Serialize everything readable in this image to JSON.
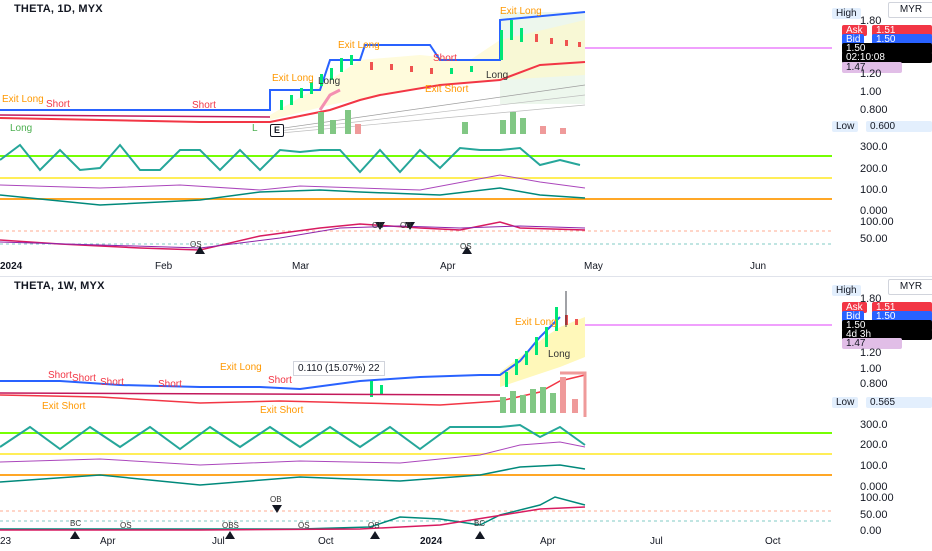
{
  "panels": [
    {
      "id": "panel-1d",
      "title": "THETA, 1D, MYX",
      "currency": "MYR",
      "price_ticks": [
        "1.80",
        "1.20",
        "1.00",
        "0.800"
      ],
      "labels": {
        "high_label": "High",
        "high_value": "1.80",
        "ask_label": "Ask",
        "ask_value": "1.51",
        "bid_label": "Bid",
        "bid_value": "1.50",
        "last_price": "1.50",
        "countdown": "02:10:08",
        "pink_value": "1.47",
        "low_label": "Low",
        "low_value": "0.600"
      },
      "osc1_ticks": [
        "300.0",
        "200.0",
        "100.0",
        "0.000"
      ],
      "osc2_ticks": [
        "100.00",
        "50.00"
      ],
      "time_labels": [
        "2024",
        "Feb",
        "Mar",
        "Apr",
        "May",
        "Jun"
      ],
      "annotations": [
        "Exit Long",
        "Short",
        "Short",
        "Long",
        "Exit Long",
        "Exit Long",
        "Short",
        "Exit Short",
        "Exit Long",
        "Long",
        "Long",
        "L"
      ],
      "osc_annotations": [
        "OB",
        "OB",
        "OS",
        "OS"
      ],
      "badge": "E"
    },
    {
      "id": "panel-1w",
      "title": "THETA, 1W, MYX",
      "currency": "MYR",
      "price_ticks": [
        "1.80",
        "1.20",
        "1.00",
        "0.800"
      ],
      "labels": {
        "high_label": "High",
        "high_value": "1.80",
        "ask_label": "Ask",
        "ask_value": "1.51",
        "bid_label": "Bid",
        "bid_value": "1.50",
        "last_price": "1.50",
        "countdown": "4d 3h",
        "pink_value": "1.47",
        "low_label": "Low",
        "low_value": "0.565"
      },
      "osc1_ticks": [
        "300.0",
        "200.0",
        "100.0",
        "0.000"
      ],
      "osc2_ticks": [
        "100.00",
        "50.00",
        "0.00"
      ],
      "time_labels": [
        "23",
        "Apr",
        "Jul",
        "Oct",
        "2024",
        "Apr",
        "Jul",
        "Oct"
      ],
      "annotations": [
        "Short",
        "Short",
        "Short",
        "Short",
        "Exit Long",
        "Short",
        "Exit Short",
        "Exit Short",
        "Exit Long",
        "Long"
      ],
      "osc_annotations": [
        "BC",
        "OS",
        "OBS",
        "OS",
        "OS",
        "BC",
        "OB"
      ],
      "measure": "0.110 (15.07%) 22"
    }
  ],
  "colors": {
    "green_line": "#26a69a",
    "green_band": "#66bb6a",
    "yellow_band": "#ffeb3b",
    "orange_band": "#ff9800",
    "red_line": "#f23645",
    "blue_line": "#2962ff",
    "pink_line": "#e040fb",
    "purple_line": "#9c27b0"
  }
}
